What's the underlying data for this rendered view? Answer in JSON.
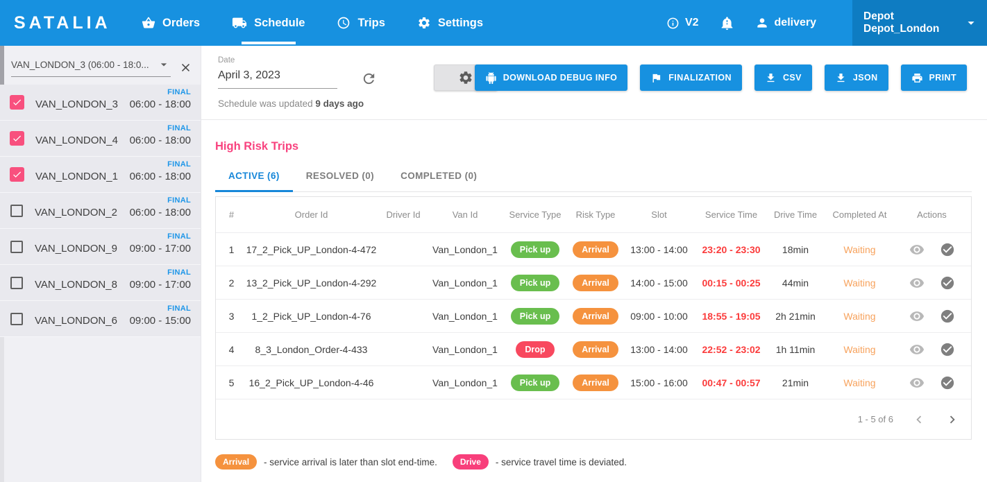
{
  "navbar": {
    "brand": "SATALIA",
    "items": [
      {
        "label": "Orders",
        "icon": "basket-icon",
        "active": false
      },
      {
        "label": "Schedule",
        "icon": "truck-icon",
        "active": true
      },
      {
        "label": "Trips",
        "icon": "clock-icon",
        "active": false
      },
      {
        "label": "Settings",
        "icon": "gear-icon",
        "active": false
      }
    ],
    "version": "V2",
    "user": "delivery",
    "depot": "Depot Depot_London"
  },
  "sidebar": {
    "filter_value": "VAN_LONDON_3 (06:00 - 18:0...",
    "vans": [
      {
        "name": "VAN_LONDON_3",
        "time": "06:00 - 18:00",
        "badge": "FINAL",
        "checked": true
      },
      {
        "name": "VAN_LONDON_4",
        "time": "06:00 - 18:00",
        "badge": "FINAL",
        "checked": true
      },
      {
        "name": "VAN_LONDON_1",
        "time": "06:00 - 18:00",
        "badge": "FINAL",
        "checked": true
      },
      {
        "name": "VAN_LONDON_2",
        "time": "06:00 - 18:00",
        "badge": "FINAL",
        "checked": false
      },
      {
        "name": "VAN_LONDON_9",
        "time": "09:00 - 17:00",
        "badge": "FINAL",
        "checked": false
      },
      {
        "name": "VAN_LONDON_8",
        "time": "09:00 - 17:00",
        "badge": "FINAL",
        "checked": false
      },
      {
        "name": "VAN_LONDON_6",
        "time": "09:00 - 15:00",
        "badge": "FINAL",
        "checked": false
      }
    ]
  },
  "toolbar": {
    "date_label": "Date",
    "date_value": "April 3, 2023",
    "updated_prefix": "Schedule was updated",
    "updated_value": "9 days ago",
    "buttons": {
      "debug": "DOWNLOAD DEBUG INFO",
      "finalization": "FINALIZATION",
      "csv": "CSV",
      "json": "JSON",
      "print": "PRINT"
    }
  },
  "main": {
    "title": "High Risk Trips",
    "tabs": [
      {
        "label": "ACTIVE (6)",
        "active": true
      },
      {
        "label": "RESOLVED (0)",
        "active": false
      },
      {
        "label": "COMPLETED (0)",
        "active": false
      }
    ],
    "table": {
      "headers": [
        "#",
        "Order Id",
        "Driver Id",
        "Van Id",
        "Service Type",
        "Risk Type",
        "Slot",
        "Service Time",
        "Drive Time",
        "Completed At",
        "Actions"
      ],
      "rows": [
        {
          "num": "1",
          "order_id": "17_2_Pick_UP_London-4-472",
          "driver_id": "",
          "van_id": "Van_London_1",
          "service_type": "Pick up",
          "risk_type": "Arrival",
          "slot": "13:00 - 14:00",
          "service_time": "23:20 - 23:30",
          "drive_time": "18min",
          "completed_at": "Waiting"
        },
        {
          "num": "2",
          "order_id": "13_2_Pick_UP_London-4-292",
          "driver_id": "",
          "van_id": "Van_London_1",
          "service_type": "Pick up",
          "risk_type": "Arrival",
          "slot": "14:00 - 15:00",
          "service_time": "00:15 - 00:25",
          "drive_time": "44min",
          "completed_at": "Waiting"
        },
        {
          "num": "3",
          "order_id": "1_2_Pick_UP_London-4-76",
          "driver_id": "",
          "van_id": "Van_London_1",
          "service_type": "Pick up",
          "risk_type": "Arrival",
          "slot": "09:00 - 10:00",
          "service_time": "18:55 - 19:05",
          "drive_time": "2h 21min",
          "completed_at": "Waiting"
        },
        {
          "num": "4",
          "order_id": "8_3_London_Order-4-433",
          "driver_id": "",
          "van_id": "Van_London_1",
          "service_type": "Drop",
          "risk_type": "Arrival",
          "slot": "13:00 - 14:00",
          "service_time": "22:52 - 23:02",
          "drive_time": "1h 11min",
          "completed_at": "Waiting"
        },
        {
          "num": "5",
          "order_id": "16_2_Pick_UP_London-4-46",
          "driver_id": "",
          "van_id": "Van_London_1",
          "service_type": "Pick up",
          "risk_type": "Arrival",
          "slot": "15:00 - 16:00",
          "service_time": "00:47 - 00:57",
          "drive_time": "21min",
          "completed_at": "Waiting"
        }
      ],
      "pagination": "1 - 5 of 6"
    },
    "legend": [
      {
        "badge": "Arrival",
        "text": "- service arrival is later than slot end-time."
      },
      {
        "badge": "Drive",
        "text": "- service travel time is deviated."
      }
    ]
  },
  "colors": {
    "navbar_blue": "#1791E0",
    "depot_blue": "#0E7CC2",
    "accent_pink": "#F8437F",
    "checkbox_pink": "#F8507E",
    "badge_green": "#69BE4E",
    "badge_orange": "#F5923E",
    "badge_red": "#F8485E",
    "legend_drive_pink": "#F83F7B",
    "alert_time_red": "#FB3B3B",
    "waiting_orange": "#F7A25C",
    "final_blue": "#1E96E8",
    "tab_active_blue": "#1787D9"
  }
}
